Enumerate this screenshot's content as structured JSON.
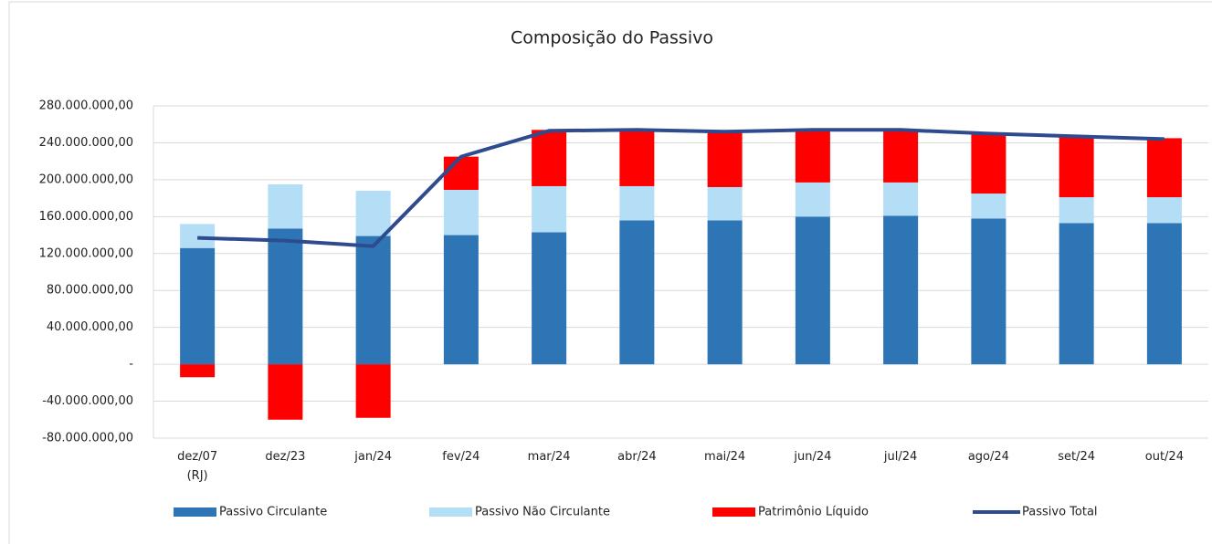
{
  "chart_data": {
    "type": "stacked_bar_line",
    "title": "Composição do Passivo",
    "categories": [
      "dez/07 (RJ)",
      "dez/23",
      "jan/24",
      "fev/24",
      "mar/24",
      "abr/24",
      "mai/24",
      "jun/24",
      "jul/24",
      "ago/24",
      "set/24",
      "out/24"
    ],
    "series": [
      {
        "name": "Passivo Circulante",
        "color": "#2e75b6",
        "kind": "bar",
        "values": [
          126000000,
          147000000,
          139000000,
          140000000,
          143000000,
          156000000,
          156000000,
          160000000,
          161000000,
          158000000,
          153000000,
          153000000
        ]
      },
      {
        "name": "Passivo Não Circulante",
        "color": "#b4def6",
        "kind": "bar",
        "values": [
          26000000,
          48000000,
          49000000,
          49000000,
          50000000,
          37000000,
          36000000,
          37000000,
          36000000,
          27000000,
          28000000,
          28000000
        ]
      },
      {
        "name": "Patrimônio Líquido",
        "color": "#ff0000",
        "kind": "bar",
        "values": [
          -14000000,
          -60000000,
          -58000000,
          36000000,
          61000000,
          61000000,
          60000000,
          57000000,
          57000000,
          64000000,
          65000000,
          64000000
        ]
      },
      {
        "name": "Passivo Total",
        "color": "#2f4b8f",
        "kind": "line",
        "values": [
          137000000,
          134000000,
          128000000,
          225000000,
          253000000,
          254000000,
          252000000,
          254000000,
          254000000,
          250000000,
          247000000,
          244000000
        ]
      }
    ],
    "ylim": [
      -80000000,
      280000000
    ],
    "yticks": [
      {
        "value": -80000000,
        "label": "-80.000.000,00"
      },
      {
        "value": -40000000,
        "label": "-40.000.000,00"
      },
      {
        "value": 0,
        "label": "-"
      },
      {
        "value": 40000000,
        "label": "40.000.000,00"
      },
      {
        "value": 80000000,
        "label": "80.000.000,00"
      },
      {
        "value": 120000000,
        "label": "120.000.000,00"
      },
      {
        "value": 160000000,
        "label": "160.000.000,00"
      },
      {
        "value": 200000000,
        "label": "200.000.000,00"
      },
      {
        "value": 240000000,
        "label": "240.000.000,00"
      },
      {
        "value": 280000000,
        "label": "280.000.000,00"
      }
    ],
    "grid": true,
    "legend": "bottom"
  }
}
